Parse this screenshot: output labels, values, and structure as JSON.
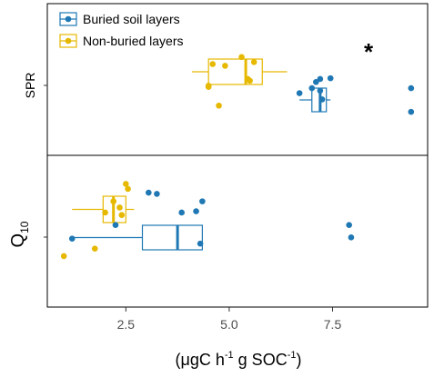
{
  "chart_data": {
    "type": "box",
    "xlabel": "(μgC h⁻¹ g SOC⁻¹)",
    "xlabel_parts": {
      "prefix": "(μgC h",
      "sup1": "-1",
      "mid": " g SOC",
      "sup2": "-1",
      "suffix": ")"
    },
    "xlim": [
      0.6,
      9.8
    ],
    "xticks": [
      2.5,
      5.0,
      7.5
    ],
    "xtick_labels": [
      "2.5",
      "5.0",
      "7.5"
    ],
    "grid": false,
    "legend": {
      "placement": "top-left",
      "entries": [
        {
          "name": "Buried soil layers",
          "color": "#1f78b4"
        },
        {
          "name": "Non-buried layers",
          "color": "#e6b800"
        }
      ]
    },
    "panels": [
      {
        "label": "SPR",
        "annotation": "*",
        "groups": [
          {
            "series": "Non-buried layers",
            "color": "#e6b800",
            "box": {
              "min": 4.1,
              "q1": 4.5,
              "median": 5.4,
              "q3": 5.8,
              "max": 6.4
            },
            "points": [
              [
                4.6,
                0.62
              ],
              [
                5.3,
                0.9
              ],
              [
                5.6,
                0.7
              ],
              [
                4.9,
                0.55
              ],
              [
                5.45,
                0.02
              ],
              [
                5.5,
                -0.05
              ],
              [
                4.5,
                -0.25
              ],
              [
                4.5,
                -0.3
              ],
              [
                4.75,
                -1.05
              ]
            ]
          },
          {
            "series": "Buried soil layers",
            "color": "#1f78b4",
            "box": {
              "min": 6.7,
              "q1": 7.0,
              "median": 7.2,
              "q3": 7.35,
              "max": 7.45
            },
            "points": [
              [
                7.1,
                -0.1
              ],
              [
                7.45,
                0.05
              ],
              [
                7.0,
                -0.35
              ],
              [
                6.7,
                -0.55
              ],
              [
                7.2,
                -0.45
              ],
              [
                7.25,
                -0.8
              ],
              [
                9.4,
                -0.35
              ],
              [
                9.4,
                -1.3
              ],
              [
                7.2,
                0.02
              ]
            ]
          }
        ]
      },
      {
        "label": "Q10",
        "label_parts": {
          "base": "Q",
          "sub": "10"
        },
        "groups": [
          {
            "series": "Non-buried layers",
            "color": "#e6b800",
            "box": {
              "min": 1.2,
              "q1": 1.95,
              "median": 2.2,
              "q3": 2.5,
              "max": 2.7
            },
            "points": [
              [
                2.5,
                1.9
              ],
              [
                2.55,
                1.7
              ],
              [
                2.2,
                1.2
              ],
              [
                2.0,
                0.75
              ],
              [
                2.4,
                0.65
              ],
              [
                2.35,
                0.95
              ],
              [
                1.75,
                -0.7
              ],
              [
                1.0,
                -1.0
              ]
            ]
          },
          {
            "series": "Buried soil layers",
            "color": "#1f78b4",
            "box": {
              "min": 1.2,
              "q1": 2.9,
              "median": 3.75,
              "q3": 4.35,
              "max": 4.35
            },
            "points": [
              [
                3.05,
                1.55
              ],
              [
                3.25,
                1.5
              ],
              [
                4.35,
                1.2
              ],
              [
                4.2,
                0.8
              ],
              [
                3.85,
                0.75
              ],
              [
                2.25,
                0.25
              ],
              [
                1.2,
                -0.3
              ],
              [
                4.3,
                -0.5
              ],
              [
                7.9,
                0.25
              ],
              [
                7.95,
                -0.25
              ]
            ]
          }
        ]
      }
    ]
  }
}
